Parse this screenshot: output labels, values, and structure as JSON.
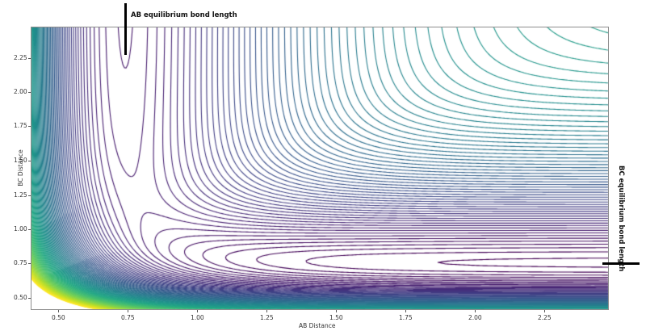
{
  "chart_data": {
    "type": "contour",
    "title": "",
    "xlabel": "AB Distance",
    "ylabel": "BC Distance",
    "xlim": [
      0.4,
      2.48
    ],
    "ylim": [
      0.41,
      2.48
    ],
    "x_ticks": [
      "0.50",
      "0.75",
      "1.00",
      "1.25",
      "1.50",
      "1.75",
      "2.00",
      "2.25"
    ],
    "y_ticks": [
      "0.50",
      "0.75",
      "1.00",
      "1.25",
      "1.50",
      "1.75",
      "2.00",
      "2.25"
    ],
    "colormap": "viridis",
    "grid": false,
    "legend": null,
    "num_levels": 100,
    "surface": {
      "description": "Potential energy surface contour plot of A + BC -> AB + C",
      "ab_equilibrium_bond_length": 0.74,
      "bc_equilibrium_bond_length": 0.75,
      "approx_saddle_point": {
        "AB": 0.88,
        "BC": 1.0
      }
    },
    "annotations": [
      {
        "text": "AB equilibrium bond length",
        "x": 0.74,
        "orientation": "vertical-marker-top"
      },
      {
        "text": "BC equilibrium bond length",
        "y": 0.75,
        "orientation": "horizontal-marker-right"
      }
    ]
  },
  "axes": {
    "xlabel": "AB Distance",
    "ylabel": "BC Distance"
  },
  "annotations": {
    "ab_label": "AB equilibrium bond length",
    "bc_label": "BC equilibrium bond length"
  },
  "colors": {
    "colormap_low": "#440154",
    "colormap_high": "#fde725",
    "axes_frame": "#8c8c8c",
    "annotation": "#000000"
  }
}
